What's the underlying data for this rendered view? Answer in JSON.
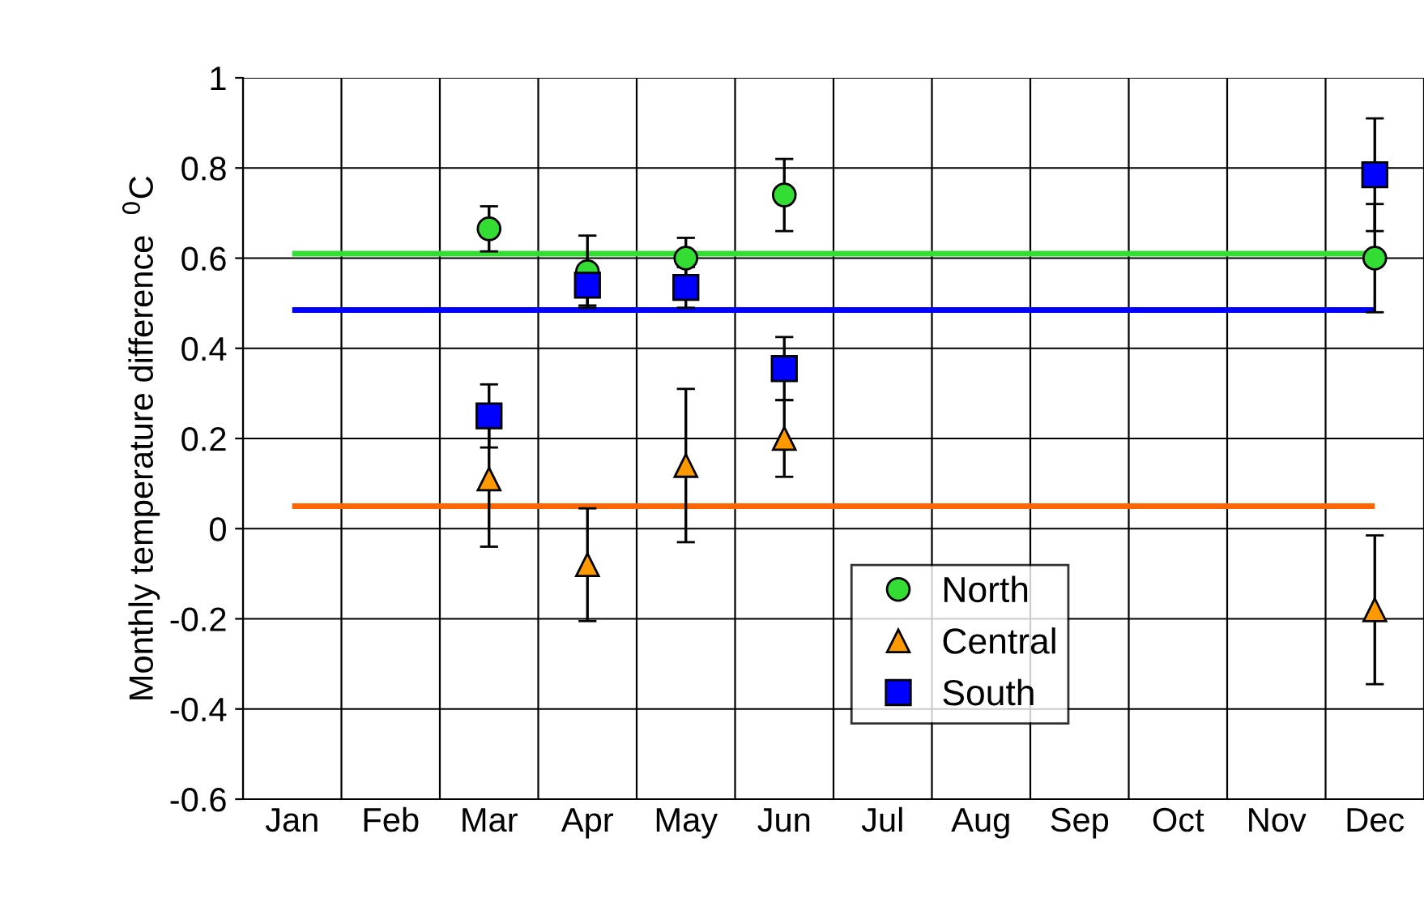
{
  "chart_data": {
    "type": "scatter",
    "ylabel": "Monthly temperature difference  $^{0}$C",
    "categories": [
      "Jan",
      "Feb",
      "Mar",
      "Apr",
      "May",
      "Jun",
      "Jul",
      "Aug",
      "Sep",
      "Oct",
      "Nov",
      "Dec"
    ],
    "series": [
      {
        "name": "North",
        "color": "#33dd33",
        "marker": "circle",
        "values": [
          null,
          null,
          0.665,
          0.57,
          0.6,
          0.74,
          null,
          null,
          null,
          null,
          null,
          0.6
        ],
        "errors": [
          null,
          null,
          0.05,
          0.08,
          0.045,
          0.08,
          null,
          null,
          null,
          null,
          null,
          0.12
        ]
      },
      {
        "name": "Central",
        "color": "#ff9900",
        "marker": "triangle",
        "values": [
          null,
          null,
          0.11,
          -0.08,
          0.14,
          0.2,
          null,
          null,
          null,
          null,
          null,
          -0.18
        ],
        "errors": [
          null,
          null,
          0.15,
          0.125,
          0.17,
          0.085,
          null,
          null,
          null,
          null,
          null,
          0.165
        ]
      },
      {
        "name": "South",
        "color": "#0000ff",
        "marker": "square",
        "values": [
          null,
          null,
          0.25,
          0.54,
          0.535,
          0.355,
          null,
          null,
          null,
          null,
          null,
          0.785
        ],
        "errors": [
          null,
          null,
          0.07,
          0.045,
          0.045,
          0.07,
          null,
          null,
          null,
          null,
          null,
          0.125
        ]
      }
    ],
    "ref_lines": [
      {
        "axis": "y",
        "value": 0.61,
        "label": null,
        "color": "#33dd33"
      },
      {
        "axis": "y",
        "value": 0.485,
        "label": null,
        "color": "#0000ff"
      },
      {
        "axis": "y",
        "value": 0.05,
        "label": null,
        "color": "#ff6600"
      }
    ],
    "ylim": [
      -0.6,
      1
    ],
    "yticks": [
      -0.6,
      -0.4,
      -0.2,
      0,
      0.2,
      0.4,
      0.6,
      0.8,
      1
    ],
    "grid": true,
    "legend": "bottom right"
  }
}
